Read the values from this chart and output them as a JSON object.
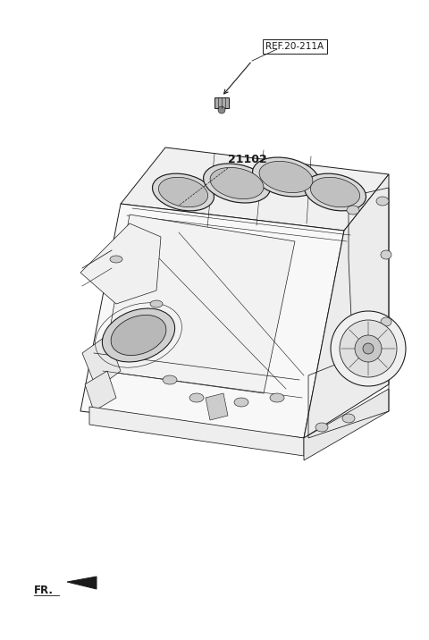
{
  "bg_color": "#ffffff",
  "lc": "#1a1a1a",
  "lw": 0.7,
  "ref_label": "REF.20-211A",
  "part_label": "21102",
  "fr_label": "FR.",
  "figsize": [
    4.8,
    7.16
  ],
  "dpi": 100
}
